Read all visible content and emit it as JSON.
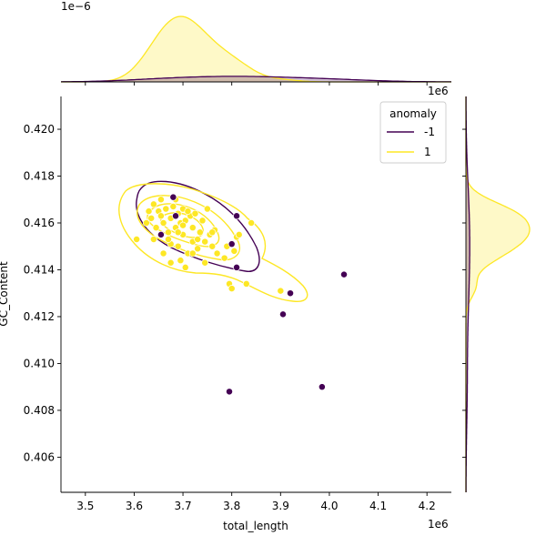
{
  "chart_data": {
    "type": "scatter",
    "subtype": "jointplot with kde contours and marginal kde",
    "xlabel": "total_length",
    "ylabel": "GC_Content",
    "x_offset_label": "1e6",
    "y_marginal_offset_label": "1e−6",
    "x_marginal_offset_label": "1e6",
    "xlim": [
      3.45,
      4.25
    ],
    "ylim": [
      0.4045,
      0.4214
    ],
    "xticks": [
      3.5,
      3.6,
      3.7,
      3.8,
      3.9,
      4.0,
      4.1,
      4.2
    ],
    "xtick_labels": [
      "3.5",
      "3.6",
      "3.7",
      "3.8",
      "3.9",
      "4.0",
      "4.1",
      "4.2"
    ],
    "yticks": [
      0.406,
      0.408,
      0.41,
      0.412,
      0.414,
      0.416,
      0.418,
      0.42
    ],
    "ytick_labels": [
      "0.406",
      "0.408",
      "0.410",
      "0.412",
      "0.414",
      "0.416",
      "0.418",
      "0.420"
    ],
    "x_units": "millions (×1e6)",
    "grid": false,
    "legend": {
      "title": "anomaly",
      "placement": "upper right",
      "entries": [
        {
          "label": "-1",
          "color": "#440154"
        },
        {
          "label": "1",
          "color": "#fde725"
        }
      ]
    },
    "colors": {
      "anomaly_neg1": "#440154",
      "anomaly_pos1": "#fde725"
    },
    "series": [
      {
        "name": "-1",
        "color": "#440154",
        "points": [
          {
            "x": 3.68,
            "y": 0.4171
          },
          {
            "x": 3.685,
            "y": 0.4163
          },
          {
            "x": 3.655,
            "y": 0.4155
          },
          {
            "x": 3.8,
            "y": 0.4151
          },
          {
            "x": 3.81,
            "y": 0.4163
          },
          {
            "x": 3.81,
            "y": 0.4141
          },
          {
            "x": 4.03,
            "y": 0.4138
          },
          {
            "x": 3.92,
            "y": 0.413
          },
          {
            "x": 3.905,
            "y": 0.4121
          },
          {
            "x": 3.795,
            "y": 0.4088
          },
          {
            "x": 3.985,
            "y": 0.409
          }
        ]
      },
      {
        "name": "1",
        "color": "#fde725",
        "points": [
          {
            "x": 3.605,
            "y": 0.4153
          },
          {
            "x": 3.635,
            "y": 0.4162
          },
          {
            "x": 3.64,
            "y": 0.4168
          },
          {
            "x": 3.645,
            "y": 0.4158
          },
          {
            "x": 3.65,
            "y": 0.4165
          },
          {
            "x": 3.655,
            "y": 0.417
          },
          {
            "x": 3.66,
            "y": 0.416
          },
          {
            "x": 3.665,
            "y": 0.4166
          },
          {
            "x": 3.67,
            "y": 0.4156
          },
          {
            "x": 3.675,
            "y": 0.4162
          },
          {
            "x": 3.675,
            "y": 0.4151
          },
          {
            "x": 3.68,
            "y": 0.4167
          },
          {
            "x": 3.685,
            "y": 0.4158
          },
          {
            "x": 3.69,
            "y": 0.4164
          },
          {
            "x": 3.69,
            "y": 0.415
          },
          {
            "x": 3.695,
            "y": 0.416
          },
          {
            "x": 3.7,
            "y": 0.4166
          },
          {
            "x": 3.7,
            "y": 0.4155
          },
          {
            "x": 3.705,
            "y": 0.4161
          },
          {
            "x": 3.71,
            "y": 0.4147
          },
          {
            "x": 3.715,
            "y": 0.4163
          },
          {
            "x": 3.72,
            "y": 0.4158
          },
          {
            "x": 3.72,
            "y": 0.4152
          },
          {
            "x": 3.725,
            "y": 0.4164
          },
          {
            "x": 3.73,
            "y": 0.4149
          },
          {
            "x": 3.735,
            "y": 0.4156
          },
          {
            "x": 3.74,
            "y": 0.4161
          },
          {
            "x": 3.745,
            "y": 0.4152
          },
          {
            "x": 3.75,
            "y": 0.4166
          },
          {
            "x": 3.755,
            "y": 0.4155
          },
          {
            "x": 3.76,
            "y": 0.415
          },
          {
            "x": 3.765,
            "y": 0.4157
          },
          {
            "x": 3.77,
            "y": 0.4147
          },
          {
            "x": 3.66,
            "y": 0.4147
          },
          {
            "x": 3.675,
            "y": 0.4143
          },
          {
            "x": 3.695,
            "y": 0.4144
          },
          {
            "x": 3.705,
            "y": 0.4141
          },
          {
            "x": 3.72,
            "y": 0.4147
          },
          {
            "x": 3.64,
            "y": 0.4153
          },
          {
            "x": 3.625,
            "y": 0.416
          },
          {
            "x": 3.63,
            "y": 0.4165
          },
          {
            "x": 3.685,
            "y": 0.417
          },
          {
            "x": 3.7,
            "y": 0.4159
          },
          {
            "x": 3.71,
            "y": 0.4165
          },
          {
            "x": 3.73,
            "y": 0.4153
          },
          {
            "x": 3.79,
            "y": 0.415
          },
          {
            "x": 3.795,
            "y": 0.4134
          },
          {
            "x": 3.8,
            "y": 0.4132
          },
          {
            "x": 3.81,
            "y": 0.4154
          },
          {
            "x": 3.815,
            "y": 0.4155
          },
          {
            "x": 3.83,
            "y": 0.4134
          },
          {
            "x": 3.84,
            "y": 0.416
          },
          {
            "x": 3.9,
            "y": 0.4131
          },
          {
            "x": 3.805,
            "y": 0.4148
          },
          {
            "x": 3.785,
            "y": 0.4145
          },
          {
            "x": 3.655,
            "y": 0.4163
          },
          {
            "x": 3.67,
            "y": 0.4153
          },
          {
            "x": 3.745,
            "y": 0.4143
          },
          {
            "x": 3.76,
            "y": 0.4156
          },
          {
            "x": 3.69,
            "y": 0.4156
          }
        ]
      }
    ],
    "marginal_x_kde": {
      "peak_x": 3.7,
      "series": [
        "-1",
        "1"
      ]
    },
    "marginal_y_kde": {
      "peak_y": 0.4162,
      "series": [
        "-1",
        "1"
      ]
    }
  }
}
